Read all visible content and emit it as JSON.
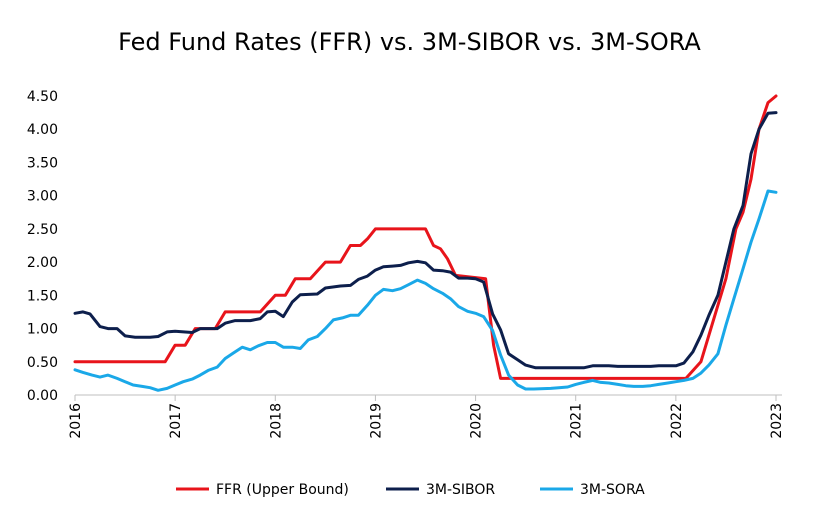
{
  "chart_data": {
    "type": "line",
    "title": "Fed Fund Rates (FFR) vs. 3M-SIBOR vs. 3M-SORA",
    "xlabel": "",
    "ylabel": "",
    "xlim": [
      2016,
      2023
    ],
    "ylim": [
      0,
      4.5
    ],
    "y_ticks": [
      "0.00",
      "0.50",
      "1.00",
      "1.50",
      "2.00",
      "2.50",
      "3.00",
      "3.50",
      "4.00",
      "4.50"
    ],
    "x_ticks": [
      "2016",
      "2017",
      "2018",
      "2019",
      "2020",
      "2021",
      "2022",
      "2023"
    ],
    "grid": false,
    "legend_position": "bottom",
    "series": [
      {
        "name": "FFR (Upper Bound)",
        "color": "#e8141b",
        "points": [
          [
            2016.0,
            0.5
          ],
          [
            2016.9,
            0.5
          ],
          [
            2017.0,
            0.75
          ],
          [
            2017.1,
            0.75
          ],
          [
            2017.2,
            1.0
          ],
          [
            2017.4,
            1.0
          ],
          [
            2017.5,
            1.25
          ],
          [
            2017.85,
            1.25
          ],
          [
            2018.0,
            1.5
          ],
          [
            2018.1,
            1.5
          ],
          [
            2018.2,
            1.75
          ],
          [
            2018.35,
            1.75
          ],
          [
            2018.5,
            2.0
          ],
          [
            2018.65,
            2.0
          ],
          [
            2018.75,
            2.25
          ],
          [
            2018.85,
            2.25
          ],
          [
            2018.92,
            2.35
          ],
          [
            2019.0,
            2.5
          ],
          [
            2019.5,
            2.5
          ],
          [
            2019.58,
            2.25
          ],
          [
            2019.65,
            2.2
          ],
          [
            2019.72,
            2.05
          ],
          [
            2019.8,
            1.8
          ],
          [
            2020.1,
            1.75
          ],
          [
            2020.18,
            0.75
          ],
          [
            2020.25,
            0.25
          ],
          [
            2021.0,
            0.25
          ],
          [
            2022.1,
            0.25
          ],
          [
            2022.25,
            0.5
          ],
          [
            2022.4,
            1.25
          ],
          [
            2022.5,
            1.75
          ],
          [
            2022.6,
            2.5
          ],
          [
            2022.67,
            2.75
          ],
          [
            2022.75,
            3.25
          ],
          [
            2022.83,
            4.0
          ],
          [
            2022.92,
            4.4
          ],
          [
            2023.0,
            4.5
          ]
        ]
      },
      {
        "name": "3M-SIBOR",
        "color": "#0d1f4c",
        "points": [
          [
            2016.0,
            1.23
          ],
          [
            2016.08,
            1.25
          ],
          [
            2016.15,
            1.22
          ],
          [
            2016.25,
            1.03
          ],
          [
            2016.33,
            1.0
          ],
          [
            2016.42,
            1.0
          ],
          [
            2016.5,
            0.89
          ],
          [
            2016.6,
            0.87
          ],
          [
            2016.75,
            0.87
          ],
          [
            2016.83,
            0.88
          ],
          [
            2016.92,
            0.95
          ],
          [
            2017.0,
            0.96
          ],
          [
            2017.17,
            0.94
          ],
          [
            2017.25,
            1.0
          ],
          [
            2017.42,
            1.0
          ],
          [
            2017.5,
            1.08
          ],
          [
            2017.6,
            1.12
          ],
          [
            2017.75,
            1.12
          ],
          [
            2017.85,
            1.15
          ],
          [
            2017.92,
            1.25
          ],
          [
            2018.0,
            1.26
          ],
          [
            2018.08,
            1.18
          ],
          [
            2018.17,
            1.4
          ],
          [
            2018.25,
            1.51
          ],
          [
            2018.42,
            1.52
          ],
          [
            2018.5,
            1.61
          ],
          [
            2018.65,
            1.64
          ],
          [
            2018.75,
            1.65
          ],
          [
            2018.83,
            1.74
          ],
          [
            2018.92,
            1.79
          ],
          [
            2019.0,
            1.88
          ],
          [
            2019.08,
            1.93
          ],
          [
            2019.17,
            1.94
          ],
          [
            2019.25,
            1.95
          ],
          [
            2019.33,
            1.99
          ],
          [
            2019.42,
            2.01
          ],
          [
            2019.5,
            1.99
          ],
          [
            2019.58,
            1.88
          ],
          [
            2019.67,
            1.87
          ],
          [
            2019.75,
            1.85
          ],
          [
            2019.83,
            1.76
          ],
          [
            2019.92,
            1.76
          ],
          [
            2020.0,
            1.75
          ],
          [
            2020.08,
            1.7
          ],
          [
            2020.17,
            1.22
          ],
          [
            2020.25,
            0.98
          ],
          [
            2020.33,
            0.62
          ],
          [
            2020.42,
            0.53
          ],
          [
            2020.5,
            0.45
          ],
          [
            2020.6,
            0.41
          ],
          [
            2020.75,
            0.41
          ],
          [
            2021.08,
            0.41
          ],
          [
            2021.17,
            0.44
          ],
          [
            2021.33,
            0.44
          ],
          [
            2021.42,
            0.43
          ],
          [
            2021.75,
            0.43
          ],
          [
            2021.83,
            0.44
          ],
          [
            2022.0,
            0.44
          ],
          [
            2022.08,
            0.48
          ],
          [
            2022.17,
            0.65
          ],
          [
            2022.25,
            0.9
          ],
          [
            2022.33,
            1.2
          ],
          [
            2022.42,
            1.5
          ],
          [
            2022.5,
            2.0
          ],
          [
            2022.58,
            2.5
          ],
          [
            2022.67,
            2.85
          ],
          [
            2022.75,
            3.63
          ],
          [
            2022.83,
            4.0
          ],
          [
            2022.92,
            4.24
          ],
          [
            2023.0,
            4.25
          ]
        ]
      },
      {
        "name": "3M-SORA",
        "color": "#1aa8e8",
        "points": [
          [
            2016.0,
            0.38
          ],
          [
            2016.08,
            0.34
          ],
          [
            2016.17,
            0.3
          ],
          [
            2016.25,
            0.27
          ],
          [
            2016.33,
            0.3
          ],
          [
            2016.42,
            0.25
          ],
          [
            2016.5,
            0.2
          ],
          [
            2016.58,
            0.15
          ],
          [
            2016.67,
            0.13
          ],
          [
            2016.75,
            0.11
          ],
          [
            2016.83,
            0.07
          ],
          [
            2016.92,
            0.1
          ],
          [
            2017.0,
            0.15
          ],
          [
            2017.08,
            0.2
          ],
          [
            2017.17,
            0.24
          ],
          [
            2017.25,
            0.3
          ],
          [
            2017.33,
            0.37
          ],
          [
            2017.42,
            0.42
          ],
          [
            2017.5,
            0.55
          ],
          [
            2017.58,
            0.63
          ],
          [
            2017.67,
            0.72
          ],
          [
            2017.75,
            0.68
          ],
          [
            2017.83,
            0.74
          ],
          [
            2017.92,
            0.79
          ],
          [
            2018.0,
            0.79
          ],
          [
            2018.08,
            0.72
          ],
          [
            2018.17,
            0.72
          ],
          [
            2018.25,
            0.7
          ],
          [
            2018.33,
            0.83
          ],
          [
            2018.42,
            0.88
          ],
          [
            2018.5,
            1.0
          ],
          [
            2018.58,
            1.13
          ],
          [
            2018.67,
            1.16
          ],
          [
            2018.75,
            1.2
          ],
          [
            2018.83,
            1.2
          ],
          [
            2018.92,
            1.35
          ],
          [
            2019.0,
            1.5
          ],
          [
            2019.08,
            1.59
          ],
          [
            2019.17,
            1.57
          ],
          [
            2019.25,
            1.6
          ],
          [
            2019.33,
            1.66
          ],
          [
            2019.42,
            1.73
          ],
          [
            2019.5,
            1.68
          ],
          [
            2019.58,
            1.6
          ],
          [
            2019.67,
            1.53
          ],
          [
            2019.75,
            1.45
          ],
          [
            2019.83,
            1.33
          ],
          [
            2019.92,
            1.26
          ],
          [
            2020.0,
            1.23
          ],
          [
            2020.08,
            1.18
          ],
          [
            2020.17,
            0.97
          ],
          [
            2020.25,
            0.6
          ],
          [
            2020.33,
            0.3
          ],
          [
            2020.42,
            0.15
          ],
          [
            2020.5,
            0.09
          ],
          [
            2020.58,
            0.09
          ],
          [
            2020.75,
            0.1
          ],
          [
            2020.83,
            0.11
          ],
          [
            2020.92,
            0.12
          ],
          [
            2021.0,
            0.16
          ],
          [
            2021.08,
            0.19
          ],
          [
            2021.17,
            0.22
          ],
          [
            2021.25,
            0.19
          ],
          [
            2021.33,
            0.18
          ],
          [
            2021.42,
            0.16
          ],
          [
            2021.5,
            0.14
          ],
          [
            2021.58,
            0.13
          ],
          [
            2021.67,
            0.13
          ],
          [
            2021.75,
            0.14
          ],
          [
            2021.83,
            0.16
          ],
          [
            2021.92,
            0.18
          ],
          [
            2022.0,
            0.2
          ],
          [
            2022.08,
            0.22
          ],
          [
            2022.17,
            0.25
          ],
          [
            2022.25,
            0.33
          ],
          [
            2022.33,
            0.45
          ],
          [
            2022.42,
            0.62
          ],
          [
            2022.5,
            1.05
          ],
          [
            2022.58,
            1.45
          ],
          [
            2022.67,
            1.9
          ],
          [
            2022.75,
            2.3
          ],
          [
            2022.83,
            2.65
          ],
          [
            2022.92,
            3.07
          ],
          [
            2023.0,
            3.05
          ]
        ]
      }
    ]
  }
}
